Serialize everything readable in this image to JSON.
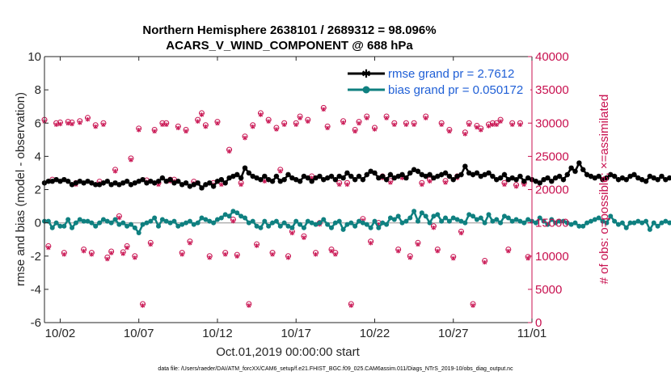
{
  "chart_data": {
    "type": "line",
    "title": [
      "Northern Hemisphere 2638101 / 2689312 = 98.096%",
      "ACARS_V_WIND_COMPONENT @ 688 hPa"
    ],
    "xlabel": "Oct.01,2019 00:00:00 start",
    "ylabel": "rmse and bias (model - observation)",
    "y2label": "# of obs: o=possible; ×=assimilated",
    "xlim": [
      0,
      31
    ],
    "ylim": [
      -6,
      10
    ],
    "y2lim": [
      0,
      40000
    ],
    "xtick_values": [
      1,
      6,
      11,
      16,
      21,
      26,
      31
    ],
    "xtick_labels": [
      "10/02",
      "10/07",
      "10/12",
      "10/17",
      "10/22",
      "10/27",
      "11/01"
    ],
    "ytick_values": [
      -6,
      -4,
      -2,
      0,
      2,
      4,
      6,
      8,
      10
    ],
    "ytick_labels": [
      "-6",
      "-4",
      "-2",
      "0",
      "2",
      "4",
      "6",
      "8",
      "10"
    ],
    "y2tick_values": [
      0,
      5000,
      10000,
      15000,
      20000,
      25000,
      30000,
      35000,
      40000
    ],
    "y2tick_labels": [
      "0",
      "5000",
      "10000",
      "15000",
      "20000",
      "25000",
      "30000",
      "35000",
      "40000"
    ],
    "legend_position": "top-right",
    "time_step_days": 0.25,
    "series": [
      {
        "name": "rmse grand pr = 2.7612",
        "axis": "left",
        "color": "#000000",
        "marker": "asterisk",
        "values": [
          2.4,
          2.5,
          2.5,
          2.6,
          2.5,
          2.6,
          2.5,
          2.3,
          2.4,
          2.5,
          2.4,
          2.5,
          2.4,
          2.3,
          2.3,
          2.4,
          2.5,
          2.3,
          2.4,
          2.3,
          2.4,
          2.5,
          2.3,
          2.4,
          2.5,
          2.6,
          2.4,
          2.5,
          2.4,
          2.5,
          2.7,
          2.5,
          2.6,
          2.4,
          2.5,
          2.3,
          2.4,
          2.2,
          2.3,
          2.4,
          2.1,
          2.3,
          2.4,
          2.2,
          2.5,
          2.6,
          2.4,
          2.7,
          2.8,
          2.9,
          2.7,
          3.3,
          3.0,
          2.8,
          2.7,
          2.6,
          2.8,
          2.6,
          2.5,
          2.8,
          2.5,
          2.6,
          2.9,
          2.7,
          2.6,
          2.5,
          2.8,
          2.7,
          2.5,
          2.7,
          2.8,
          2.6,
          2.7,
          2.8,
          2.6,
          2.8,
          2.7,
          3.0,
          2.8,
          2.6,
          2.8,
          2.6,
          2.9,
          3.1,
          3.0,
          2.7,
          2.8,
          2.6,
          2.9,
          2.7,
          2.8,
          2.9,
          2.7,
          3.0,
          3.2,
          3.1,
          2.9,
          2.8,
          2.9,
          2.7,
          2.8,
          2.9,
          3.0,
          2.8,
          2.6,
          2.8,
          2.9,
          3.4,
          3.0,
          2.9,
          3.0,
          2.8,
          2.9,
          3.0,
          2.8,
          2.6,
          2.7,
          2.9,
          2.6,
          2.7,
          2.6,
          2.8,
          2.5,
          2.7,
          2.6,
          2.5,
          2.4,
          2.6,
          2.7,
          2.5,
          2.7,
          2.8,
          2.6,
          2.9,
          3.3,
          3.1,
          3.6,
          3.2,
          2.9,
          2.8,
          2.7,
          2.8,
          2.6,
          2.7,
          2.9,
          2.8,
          2.6,
          2.7,
          2.6,
          2.8,
          2.9,
          2.7,
          2.6,
          2.5,
          2.8,
          2.7,
          2.6,
          2.8,
          2.6,
          2.7,
          2.8,
          2.7,
          2.6,
          2.8,
          3.3,
          3.0,
          2.8,
          2.7,
          3.0,
          2.8,
          2.9,
          3.2,
          2.8,
          3.1,
          2.9,
          2.7,
          2.6,
          2.9,
          3.0,
          2.8,
          2.7,
          2.8,
          2.7,
          2.6,
          2.8,
          2.8,
          2.6,
          2.5,
          2.6,
          2.7,
          2.5,
          2.6,
          3.1,
          2.9,
          3.4,
          3.3,
          3.2,
          3.3,
          3.1,
          3.2,
          3.1,
          3.3,
          2.9,
          2.8,
          3.1,
          3.0,
          3.2,
          2.8,
          3.3,
          3.8,
          3.0,
          2.9,
          3.0,
          2.7,
          2.8,
          2.6,
          2.7,
          2.9,
          2.8,
          2.6,
          2.7,
          2.6,
          2.9,
          2.7,
          2.8,
          3.0,
          2.9,
          2.6,
          2.5,
          2.8,
          2.4,
          2.5,
          2.5,
          2.7,
          2.6,
          2.6,
          2.7,
          3.0,
          3.2,
          3.1,
          2.8,
          2.9,
          3.1,
          3.2,
          3.4,
          3.5,
          3.4,
          3.3,
          3.4,
          3.3,
          3.3
        ]
      },
      {
        "name": "bias grand pr = 0.050172",
        "axis": "left",
        "color": "#0f8080",
        "marker": "dot",
        "values": [
          0.1,
          0.1,
          -0.3,
          0.0,
          -0.2,
          -0.2,
          0.2,
          -0.3,
          0.0,
          0.2,
          0.1,
          0.1,
          0.0,
          -0.2,
          0.0,
          0.2,
          0.1,
          0.0,
          0.2,
          -0.1,
          0.0,
          -0.2,
          -0.1,
          -0.3,
          -0.6,
          -0.1,
          0.0,
          0.1,
          0.3,
          -0.2,
          0.2,
          0.1,
          0.0,
          0.1,
          -0.2,
          -0.1,
          0.0,
          0.1,
          -0.1,
          0.0,
          0.3,
          0.2,
          0.1,
          0.0,
          0.2,
          0.3,
          0.5,
          0.4,
          0.7,
          0.6,
          0.4,
          0.3,
          0.0,
          0.1,
          -0.2,
          -0.3,
          0.1,
          -0.2,
          0.0,
          0.1,
          -0.2,
          0.0,
          -0.2,
          -0.3,
          0.1,
          -0.1,
          -0.3,
          0.1,
          0.0,
          -0.1,
          0.0,
          0.2,
          -0.1,
          -0.3,
          0.0,
          0.1,
          -0.4,
          -0.1,
          0.0,
          -0.2,
          0.1,
          0.0,
          -0.1,
          -0.3,
          0.1,
          -0.3,
          0.0,
          -0.1,
          0.3,
          0.2,
          0.4,
          0.0,
          0.1,
          0.3,
          0.7,
          0.1,
          0.6,
          0.4,
          0.0,
          0.4,
          0.5,
          0.1,
          0.3,
          0.1,
          0.3,
          0.2,
          0.1,
          0.0,
          0.5,
          0.4,
          0.2,
          0.3,
          0.0,
          0.5,
          0.1,
          0.2,
          0.0,
          0.4,
          0.3,
          0.1,
          0.2,
          0.1,
          0.0,
          0.2,
          0.1,
          0.0,
          0.3,
          0.1,
          -0.1,
          0.2,
          0.0,
          0.1,
          0.1,
          0.0,
          -0.1,
          0.0,
          -0.2,
          -0.2,
          0.0,
          0.1,
          0.2,
          0.3,
          0.1,
          0.0,
          0.4,
          0.1,
          -0.1,
          0.0,
          -0.3,
          0.0,
          0.0,
          0.1,
          0.0,
          0.1,
          -0.4,
          0.0,
          -0.2,
          0.0,
          0.1,
          0.0,
          0.2,
          0.1,
          0.0,
          0.0,
          -0.1,
          0.1,
          0.0,
          0.1,
          0.0,
          0.1,
          0.0,
          0.4,
          0.0,
          -0.2,
          0.0,
          0.4,
          0.0,
          -0.1,
          0.2,
          0.1,
          -0.2,
          0.2,
          -0.2,
          -0.4,
          0.0,
          0.1,
          -0.1,
          0.2,
          0.0,
          0.1,
          -0.1,
          -0.2,
          -0.2,
          0.0,
          -0.1,
          -0.4,
          0.0,
          0.0,
          0.1,
          0.1,
          0.3,
          0.0,
          0.4,
          0.2,
          0.1,
          0.2,
          0.5,
          0.6,
          0.4,
          0.6,
          0.5,
          0.2,
          0.3,
          0.2,
          0.1,
          0.0,
          -0.1,
          0.0,
          -0.2,
          0.1,
          0.0,
          -0.1,
          0.1,
          0.0,
          0.2,
          -0.1,
          0.1,
          0.0,
          0.1,
          0.2,
          0.0,
          -0.1,
          0.0,
          -0.3,
          0.1,
          0.0,
          0.1,
          -0.2,
          0.0,
          0.1,
          0.1,
          0.0,
          0.2,
          0.0,
          -0.1,
          0.1,
          -0.1,
          0.1,
          0.0,
          -0.1,
          0.3,
          0.1,
          -0.1,
          0.2,
          0.1,
          -0.1,
          -0.2,
          -0.4,
          -0.3
        ]
      }
    ],
    "obs_counts": {
      "name": "# of obs (possible / assimilated)",
      "axis": "right",
      "color": "#c8104f",
      "x": [
        0.0,
        0.25,
        0.5,
        0.75,
        1.0,
        1.25,
        1.5,
        1.75,
        2.0,
        2.25,
        2.5,
        2.75,
        3.0,
        3.25,
        3.5,
        3.75,
        4.0,
        4.25,
        4.5,
        4.75,
        5.0,
        5.25,
        5.5,
        5.75,
        6.0,
        6.25,
        6.5,
        6.75,
        7.0,
        7.25,
        7.5,
        7.75,
        8.0,
        8.25,
        8.5,
        8.75,
        9.0,
        9.25,
        9.5,
        9.75,
        10.0,
        10.25,
        10.5,
        10.75,
        11.0,
        11.25,
        11.5,
        11.75,
        12.0,
        12.25,
        12.5,
        12.75,
        13.0,
        13.25,
        13.5,
        13.75,
        14.0,
        14.25,
        14.5,
        14.75,
        15.0,
        15.25,
        15.5,
        15.75,
        16.0,
        16.25,
        16.5,
        16.75,
        17.0,
        17.25,
        17.5,
        17.75,
        18.0,
        18.25,
        18.5,
        18.75,
        19.0,
        19.25,
        19.5,
        19.75,
        20.0,
        20.25,
        20.5,
        20.75,
        21.0,
        21.25,
        21.5,
        21.75,
        22.0,
        22.25,
        22.5,
        22.75,
        23.0,
        23.25,
        23.5,
        23.75,
        24.0,
        24.25,
        24.5,
        24.75,
        25.0,
        25.25,
        25.5,
        25.75,
        26.0,
        26.25,
        26.5,
        26.75,
        27.0,
        27.25,
        27.5,
        27.75,
        28.0,
        28.25,
        28.5,
        28.75,
        29.0,
        29.25,
        29.5,
        29.75,
        30.0,
        30.25,
        30.5,
        30.75
      ],
      "possible": [
        30500,
        11500,
        21500,
        30000,
        30100,
        10500,
        30200,
        30100,
        21000,
        30300,
        11000,
        30800,
        10500,
        29700,
        21200,
        30000,
        9800,
        10700,
        23000,
        16000,
        10600,
        11500,
        24700,
        10000,
        29200,
        2800,
        21400,
        12000,
        29000,
        21000,
        30000,
        30000,
        21500,
        21500,
        29500,
        10500,
        29000,
        12200,
        21200,
        30500,
        31500,
        29700,
        10000,
        21000,
        30200,
        21000,
        10500,
        26000,
        15500,
        10200,
        21000,
        28000,
        2800,
        29700,
        11800,
        31500,
        21500,
        30500,
        10500,
        29300,
        23000,
        30000,
        10000,
        13700,
        30000,
        31000,
        13000,
        30500,
        22000,
        10500,
        15000,
        32300,
        29500,
        11000,
        10500,
        21000,
        30300,
        21000,
        2800,
        29000,
        30200,
        15600,
        31000,
        12200,
        29300,
        15000,
        22000,
        31000,
        21300,
        30000,
        11000,
        22000,
        30000,
        10000,
        30000,
        12000,
        21000,
        31000,
        21500,
        14500,
        11000,
        30000,
        21300,
        29000,
        9900,
        22000,
        13700,
        28600,
        30000,
        2800,
        29600,
        29200,
        9300,
        29800,
        30000,
        30000,
        30500,
        21000,
        11000,
        30000,
        20700,
        30000,
        21000,
        9900,
        24000,
        10000
      ]
    }
  },
  "footnote": "data file: /Users/raeder/DAI/ATM_forcXX/CAM6_setup/f.e21.FHIST_BGC.f09_025.CAM6assim.011/Diags_NTrS_2019-10/obs_diag_output.nc"
}
